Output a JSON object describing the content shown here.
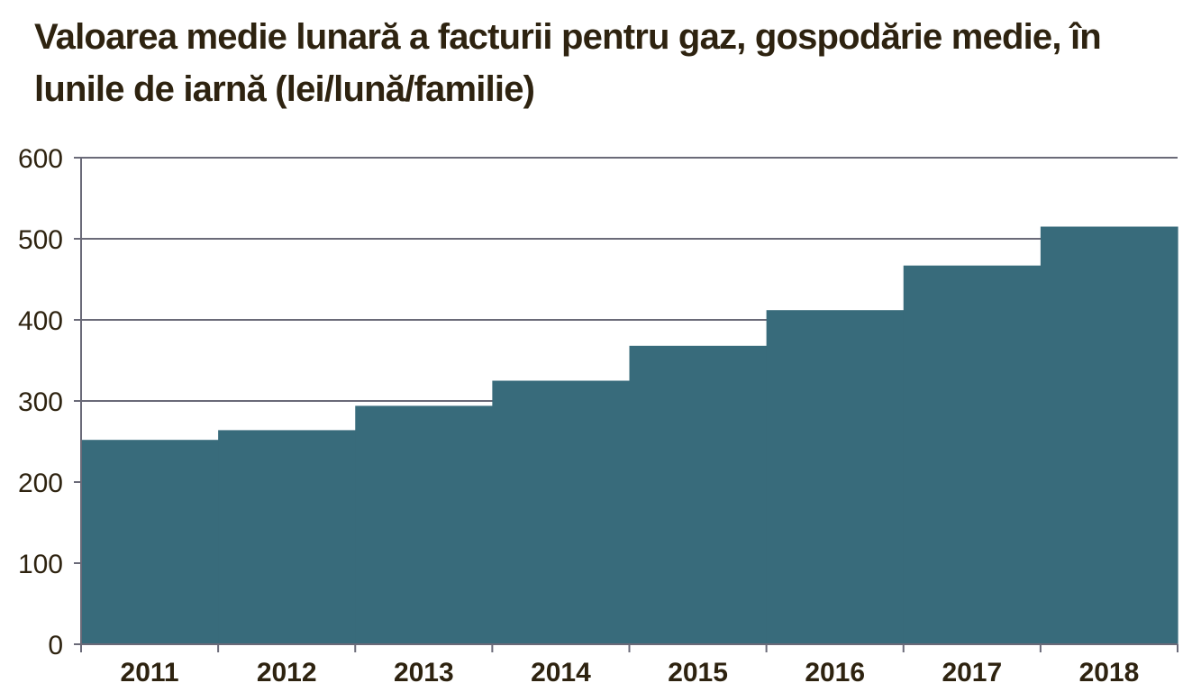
{
  "chart_data": {
    "type": "bar",
    "title": "Valoarea medie lunară a facturii pentru gaz, gospodărie medie, în lunile de iarnă (lei/lună/familie)",
    "xlabel": "",
    "ylabel": "",
    "categories": [
      "2011",
      "2012",
      "2013",
      "2014",
      "2015",
      "2016",
      "2017",
      "2018"
    ],
    "values": [
      252,
      264,
      294,
      325,
      368,
      412,
      467,
      515
    ],
    "ylim": [
      0,
      600
    ],
    "yticks": [
      "0",
      "100",
      "200",
      "300",
      "400",
      "500",
      "600"
    ],
    "grid": "horizontal",
    "legend": "none",
    "bar_gap": "none"
  },
  "colors": {
    "bar": "#386b7b",
    "grid": "#6a6a78",
    "axis": "#6a6a78",
    "text": "#2e2310"
  }
}
